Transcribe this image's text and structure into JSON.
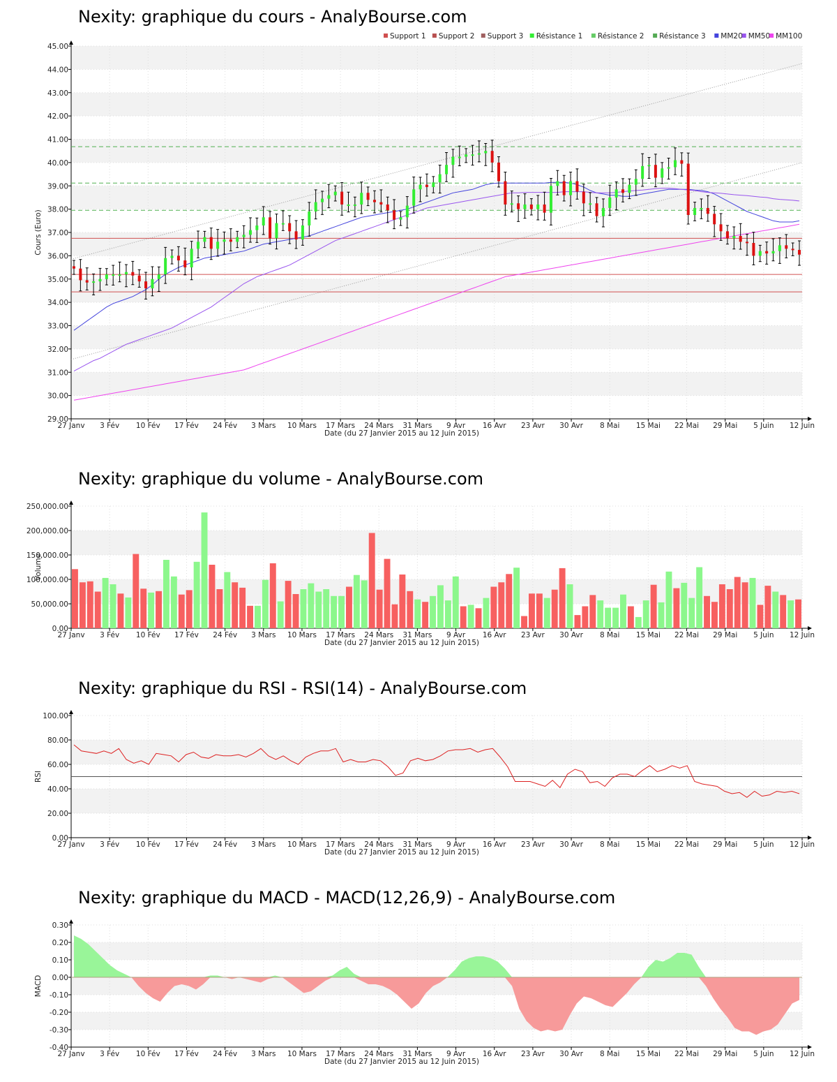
{
  "date_axis": {
    "ticks": [
      "27 Janv",
      "3 Fév",
      "10 Fév",
      "17 Fév",
      "24 Fév",
      "3 Mars",
      "10 Mars",
      "17 Mars",
      "24 Mars",
      "31 Mars",
      "9 Avr",
      "16 Avr",
      "23 Avr",
      "30 Avr",
      "8 Mai",
      "15 Mai",
      "22 Mai",
      "29 Mai",
      "5 Juin",
      "12 Juin"
    ],
    "xlabel": "Date (du 27 Janvier 2015 au 12 Juin 2015)"
  },
  "colors": {
    "up": "#33ee33",
    "down": "#dd1111",
    "vol_up": "#8cf78c",
    "vol_down": "#f76060",
    "support": "#d05050",
    "resistance": "#50b050",
    "mm20": "#4444dd",
    "mm50": "#9955ee",
    "mm100": "#ee44ee",
    "rsi": "#dd2020",
    "macd_pos": "#99f599",
    "macd_neg": "#f79a9a"
  },
  "chart_data": [
    {
      "type": "candlestick",
      "title": "Nexity: graphique du cours - AnalyBourse.com",
      "ylabel": "Cours (Euro)",
      "ylim": [
        29,
        45
      ],
      "yticks": [
        "29.00",
        "30.00",
        "31.00",
        "32.00",
        "33.00",
        "34.00",
        "35.00",
        "36.00",
        "37.00",
        "38.00",
        "39.00",
        "40.00",
        "41.00",
        "42.00",
        "43.00",
        "44.00",
        "45.00"
      ],
      "legend": [
        "Support 1",
        "Support 2",
        "Support 3",
        "Résistance 1",
        "Résistance 2",
        "Résistance 3",
        "MM20",
        "MM50",
        "MM100"
      ],
      "legend_position": "top-right",
      "supports": [
        36.75,
        35.2,
        34.45
      ],
      "resistances": [
        37.95,
        39.12,
        40.68
      ],
      "close": [
        35.45,
        34.95,
        34.85,
        34.9,
        35.0,
        35.2,
        35.2,
        35.2,
        35.3,
        35.15,
        34.9,
        34.6,
        35.0,
        35.2,
        35.9,
        36.0,
        35.8,
        35.5,
        36.3,
        36.6,
        36.8,
        36.3,
        36.6,
        36.7,
        36.6,
        36.8,
        36.9,
        37.1,
        37.3,
        37.65,
        36.75,
        37.4,
        37.4,
        37.05,
        36.7,
        37.3,
        37.9,
        38.3,
        38.45,
        38.6,
        38.75,
        38.2,
        38.2,
        38.2,
        38.7,
        38.4,
        38.3,
        38.2,
        37.95,
        37.55,
        37.65,
        38.15,
        38.85,
        39.05,
        38.95,
        39.15,
        39.5,
        39.9,
        40.25,
        40.25,
        40.35,
        40.35,
        40.4,
        40.5,
        40.0,
        39.2,
        38.2,
        38.25,
        38.0,
        38.2,
        38.0,
        38.2,
        37.85,
        39.0,
        39.2,
        38.6,
        39.2,
        38.75,
        38.25,
        38.25,
        37.7,
        38.05,
        38.5,
        38.85,
        38.7,
        39.05,
        39.3,
        39.85,
        39.9,
        39.35,
        39.75,
        39.8,
        40.1,
        39.95,
        37.75,
        38.05,
        38.05,
        37.8,
        37.35,
        37.05,
        36.75,
        36.85,
        36.6,
        36.55,
        36.0,
        36.2,
        36.1,
        36.2,
        36.45,
        36.3,
        36.25,
        36.05
      ],
      "mm20": [
        32.8,
        33.0,
        33.2,
        33.4,
        33.6,
        33.8,
        33.95,
        34.05,
        34.15,
        34.25,
        34.4,
        34.55,
        34.75,
        35.0,
        35.2,
        35.35,
        35.5,
        35.6,
        35.7,
        35.8,
        35.9,
        35.95,
        36.0,
        36.05,
        36.1,
        36.15,
        36.2,
        36.3,
        36.4,
        36.5,
        36.55,
        36.6,
        36.65,
        36.7,
        36.75,
        36.8,
        36.85,
        36.95,
        37.05,
        37.15,
        37.25,
        37.35,
        37.45,
        37.55,
        37.65,
        37.7,
        37.75,
        37.8,
        37.85,
        37.9,
        37.95,
        38.0,
        38.1,
        38.2,
        38.3,
        38.4,
        38.5,
        38.6,
        38.7,
        38.75,
        38.8,
        38.85,
        38.95,
        39.05,
        39.1,
        39.12,
        39.12,
        39.12,
        39.12,
        39.12,
        39.12,
        39.12,
        39.12,
        39.15,
        39.15,
        39.15,
        39.12,
        39.05,
        38.95,
        38.8,
        38.7,
        38.65,
        38.6,
        38.6,
        38.55,
        38.55,
        38.6,
        38.65,
        38.7,
        38.75,
        38.8,
        38.85,
        38.85,
        38.85,
        38.85,
        38.82,
        38.8,
        38.75,
        38.65,
        38.5,
        38.35,
        38.2,
        38.05,
        37.9,
        37.8,
        37.7,
        37.6,
        37.5,
        37.45,
        37.45,
        37.45,
        37.5
      ],
      "mm50": [
        31.05,
        31.2,
        31.35,
        31.5,
        31.6,
        31.75,
        31.9,
        32.05,
        32.2,
        32.3,
        32.4,
        32.5,
        32.6,
        32.7,
        32.8,
        32.9,
        33.05,
        33.2,
        33.35,
        33.5,
        33.65,
        33.8,
        34.0,
        34.2,
        34.4,
        34.6,
        34.8,
        34.95,
        35.1,
        35.2,
        35.3,
        35.4,
        35.5,
        35.6,
        35.75,
        35.9,
        36.05,
        36.2,
        36.35,
        36.5,
        36.65,
        36.75,
        36.85,
        36.95,
        37.05,
        37.15,
        37.25,
        37.35,
        37.45,
        37.55,
        37.65,
        37.75,
        37.85,
        37.95,
        38.05,
        38.1,
        38.15,
        38.2,
        38.25,
        38.3,
        38.35,
        38.4,
        38.45,
        38.5,
        38.55,
        38.6,
        38.65,
        38.7,
        38.7,
        38.72,
        38.72,
        38.72,
        38.72,
        38.72,
        38.72,
        38.75,
        38.75,
        38.75,
        38.75,
        38.72,
        38.7,
        38.7,
        38.7,
        38.72,
        38.75,
        38.78,
        38.8,
        38.82,
        38.85,
        38.88,
        38.9,
        38.9,
        38.88,
        38.85,
        38.82,
        38.8,
        38.75,
        38.72,
        38.7,
        38.68,
        38.65,
        38.62,
        38.6,
        38.58,
        38.55,
        38.52,
        38.5,
        38.45,
        38.42,
        38.4,
        38.38,
        38.35
      ],
      "mm100": [
        29.8,
        29.85,
        29.9,
        29.95,
        30.0,
        30.05,
        30.1,
        30.15,
        30.2,
        30.25,
        30.3,
        30.35,
        30.4,
        30.45,
        30.5,
        30.55,
        30.6,
        30.65,
        30.7,
        30.75,
        30.8,
        30.85,
        30.9,
        30.95,
        31.0,
        31.05,
        31.1,
        31.2,
        31.3,
        31.4,
        31.5,
        31.6,
        31.7,
        31.8,
        31.9,
        32.0,
        32.1,
        32.2,
        32.3,
        32.4,
        32.5,
        32.6,
        32.7,
        32.8,
        32.9,
        33.0,
        33.1,
        33.2,
        33.3,
        33.4,
        33.5,
        33.6,
        33.7,
        33.8,
        33.9,
        34.0,
        34.1,
        34.2,
        34.3,
        34.4,
        34.5,
        34.6,
        34.7,
        34.8,
        34.9,
        35.0,
        35.1,
        35.15,
        35.2,
        35.25,
        35.3,
        35.35,
        35.4,
        35.45,
        35.5,
        35.55,
        35.6,
        35.65,
        35.7,
        35.75,
        35.8,
        35.85,
        35.9,
        35.95,
        36.0,
        36.05,
        36.1,
        36.15,
        36.2,
        36.25,
        36.3,
        36.35,
        36.4,
        36.45,
        36.5,
        36.55,
        36.6,
        36.65,
        36.7,
        36.75,
        36.8,
        36.85,
        36.9,
        36.95,
        37.0,
        37.05,
        37.1,
        37.15,
        37.2,
        37.25,
        37.3,
        37.35
      ]
    },
    {
      "type": "bar",
      "title": "Nexity: graphique du volume - AnalyBourse.com",
      "ylabel": "Volume",
      "ylim": [
        0,
        250000
      ],
      "yticks": [
        "0.00",
        "50,000.00",
        "100,000.00",
        "150,000.00",
        "200,000.00",
        "250,000.00"
      ],
      "values": [
        121000,
        94000,
        96000,
        75000,
        103000,
        90000,
        71000,
        63000,
        152000,
        81000,
        73000,
        76000,
        140000,
        106000,
        69000,
        78000,
        136000,
        237000,
        130000,
        80000,
        115000,
        94000,
        83000,
        46000,
        46000,
        99000,
        133000,
        55000,
        97000,
        70000,
        80000,
        92000,
        75000,
        80000,
        66000,
        66000,
        85000,
        109000,
        98000,
        195000,
        79000,
        142000,
        49000,
        110000,
        76000,
        59000,
        54000,
        66000,
        88000,
        57000,
        106000,
        45000,
        48000,
        41000,
        62000,
        85000,
        94000,
        111000,
        124000,
        25000,
        71000,
        71000,
        62000,
        79000,
        123000,
        90000,
        27000,
        45000,
        68000,
        57000,
        42000,
        42000,
        69000,
        45000,
        23000,
        57000,
        89000,
        53000,
        116000,
        82000,
        93000,
        62000,
        125000,
        66000,
        54000,
        90000,
        80000,
        105000,
        94000,
        103000,
        48000,
        87000,
        75000,
        68000,
        57000,
        59000
      ],
      "up": [
        false,
        false,
        false,
        false,
        true,
        true,
        false,
        true,
        false,
        false,
        true,
        false,
        true,
        true,
        false,
        false,
        true,
        true,
        false,
        false,
        true,
        false,
        false,
        false,
        true,
        true,
        false,
        true,
        false,
        false,
        true,
        true,
        true,
        true,
        true,
        true,
        false,
        true,
        true,
        false,
        false,
        false,
        false,
        false,
        false,
        true,
        false,
        true,
        true,
        true,
        true,
        false,
        true,
        false,
        true,
        false,
        false,
        false,
        true,
        false,
        false,
        false,
        true,
        false,
        false,
        true,
        false,
        false,
        false,
        true,
        true,
        true,
        true,
        false,
        true,
        true,
        false,
        true,
        true,
        false,
        true,
        true,
        true,
        false,
        false,
        false,
        false,
        false,
        false,
        true,
        false,
        false,
        true,
        false,
        true,
        false
      ]
    },
    {
      "type": "line",
      "title": "Nexity: graphique du RSI - RSI(14) - AnalyBourse.com",
      "ylabel": "RSI",
      "ylim": [
        0,
        100
      ],
      "yticks": [
        "0.00",
        "20.00",
        "40.00",
        "60.00",
        "80.00",
        "100.00"
      ],
      "midline": 50,
      "values": [
        76,
        71,
        70,
        69,
        71,
        69,
        73,
        64,
        61,
        63,
        60,
        69,
        68,
        67,
        62,
        68,
        70,
        66,
        65,
        68,
        67,
        67,
        68,
        66,
        69,
        73,
        67,
        64,
        67,
        63,
        60,
        66,
        69,
        71,
        71,
        73,
        62,
        64,
        62,
        62,
        64,
        63,
        58,
        51,
        53,
        63,
        65,
        63,
        64,
        67,
        71,
        72,
        72,
        73,
        70,
        72,
        73,
        66,
        58,
        46,
        46,
        46,
        44,
        42,
        47,
        41,
        52,
        56,
        54,
        45,
        46,
        42,
        49,
        52,
        52,
        50,
        55,
        59,
        54,
        56,
        59,
        57,
        59,
        46,
        44,
        43,
        42,
        38,
        36,
        37,
        33,
        38,
        34,
        35,
        38,
        37,
        38,
        36
      ]
    },
    {
      "type": "area",
      "title": "Nexity: graphique du MACD - MACD(12,26,9) - AnalyBourse.com",
      "ylabel": "MACD",
      "ylim": [
        -0.4,
        0.3
      ],
      "yticks": [
        "-0.40",
        "-0.30",
        "-0.20",
        "-0.10",
        "0.00",
        "0.10",
        "0.20",
        "0.30"
      ],
      "values": [
        0.24,
        0.22,
        0.19,
        0.15,
        0.11,
        0.07,
        0.04,
        0.02,
        0.0,
        -0.05,
        -0.09,
        -0.12,
        -0.14,
        -0.09,
        -0.05,
        -0.04,
        -0.05,
        -0.07,
        -0.04,
        0.01,
        0.01,
        0.0,
        -0.01,
        0.0,
        -0.01,
        -0.02,
        -0.03,
        -0.01,
        0.01,
        0.0,
        -0.03,
        -0.06,
        -0.09,
        -0.08,
        -0.05,
        -0.02,
        0.01,
        0.04,
        0.06,
        0.02,
        -0.02,
        -0.04,
        -0.04,
        -0.05,
        -0.07,
        -0.1,
        -0.14,
        -0.18,
        -0.15,
        -0.09,
        -0.05,
        -0.03,
        0.0,
        0.04,
        0.09,
        0.11,
        0.12,
        0.12,
        0.11,
        0.09,
        0.05,
        -0.05,
        -0.18,
        -0.25,
        -0.29,
        -0.31,
        -0.3,
        -0.31,
        -0.3,
        -0.22,
        -0.15,
        -0.11,
        -0.12,
        -0.14,
        -0.16,
        -0.17,
        -0.13,
        -0.09,
        -0.04,
        0.0,
        0.06,
        0.1,
        0.09,
        0.11,
        0.14,
        0.14,
        0.13,
        0.06,
        -0.05,
        -0.12,
        -0.18,
        -0.23,
        -0.29,
        -0.31,
        -0.31,
        -0.33,
        -0.31,
        -0.3,
        -0.27,
        -0.21,
        -0.15,
        -0.13
      ]
    }
  ]
}
